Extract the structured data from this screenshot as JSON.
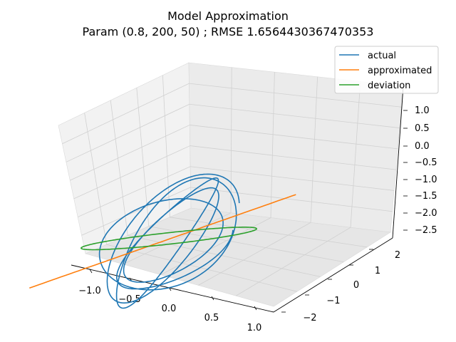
{
  "chart_data": {
    "type": "line",
    "projection": "3d",
    "title": "Model Approximation",
    "subtitle": "Param (0.8, 200, 50) ; RMSE 1.6564430367470353",
    "xlim": [
      -1.25,
      1.1
    ],
    "ylim": [
      -2.3,
      2.3
    ],
    "zlim": [
      -2.7,
      1.4
    ],
    "x_ticks": [
      -1.0,
      -0.5,
      0.0,
      0.5,
      1.0
    ],
    "x_tick_labels": [
      "−1.0",
      "−0.5",
      "0.0",
      "0.5",
      "1.0"
    ],
    "y_ticks": [
      -2,
      -1,
      0,
      1,
      2
    ],
    "y_tick_labels": [
      "−2",
      "−1",
      "0",
      "1",
      "2"
    ],
    "z_ticks": [
      1.0,
      0.5,
      0.0,
      -0.5,
      -1.0,
      -1.5,
      -2.0,
      -2.5
    ],
    "z_tick_labels": [
      "1.0",
      "0.5",
      "0.0",
      "−0.5",
      "−1.0",
      "−1.5",
      "−2.0",
      "−2.5"
    ],
    "grid": true,
    "legend_position": "top-right",
    "series": [
      {
        "name": "actual",
        "color": "#1f77b4",
        "description": "approximately five-cycle quasi-periodic loop",
        "turns": 5,
        "x_amplitude": 1.05,
        "y_amplitude": 2.0,
        "z_center": -0.6,
        "z_amplitude": 1.75
      },
      {
        "name": "approximated",
        "color": "#ff7f0e",
        "description": "approximately straight diagonal segment",
        "x": [
          -1.05,
          1.02
        ],
        "y": [
          -1.9,
          1.55
        ],
        "z": [
          -1.65,
          0.55
        ]
      },
      {
        "name": "deviation",
        "color": "#2ca02c",
        "description": "single tilted closed loop",
        "turns": 1,
        "x_amplitude": 0.85,
        "y_amplitude": 1.9,
        "z_center": -0.55,
        "z_amplitude": 1.35
      }
    ]
  },
  "legend": {
    "entries": [
      {
        "label": "actual",
        "color": "#1f77b4"
      },
      {
        "label": "approximated",
        "color": "#ff7f0e"
      },
      {
        "label": "deviation",
        "color": "#2ca02c"
      }
    ]
  }
}
